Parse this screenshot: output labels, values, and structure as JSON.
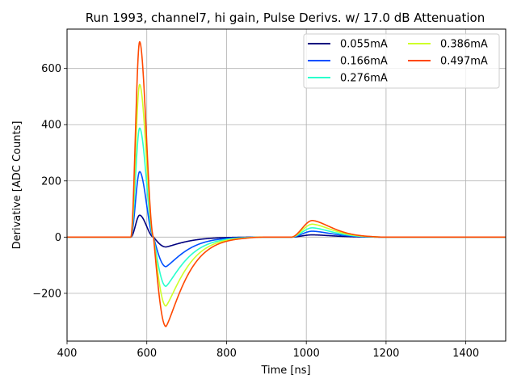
{
  "chart_data": {
    "type": "line",
    "title": "Run 1993, channel7, hi gain, Pulse Derivs. w/ 17.0 dB Attenuation",
    "xlabel": "Time [ns]",
    "ylabel": "Derivative [ADC Counts]",
    "xlim": [
      400,
      1500
    ],
    "ylim": [
      -370,
      740
    ],
    "xticks": [
      400,
      600,
      800,
      1000,
      1200,
      1400
    ],
    "yticks": [
      -200,
      0,
      200,
      400,
      600
    ],
    "ytick_labels": [
      "−200",
      "0",
      "200",
      "400",
      "600"
    ],
    "grid": true,
    "legend_position": "top-right",
    "legend_columns": 2,
    "pulse_shape": {
      "rise_start": 560,
      "peak_time": 582,
      "zero_cross_1": 617,
      "trough_time": 648,
      "recover_end": 900,
      "bump_start": 962,
      "bump_peak": 1015,
      "bump_end": 1200
    },
    "series": [
      {
        "name": "0.055mA",
        "color": "#00007f",
        "peak": 78,
        "trough": -35,
        "bump": 8
      },
      {
        "name": "0.166mA",
        "color": "#0050ff",
        "peak": 233,
        "trough": -105,
        "bump": 21
      },
      {
        "name": "0.276mA",
        "color": "#29ffcd",
        "peak": 388,
        "trough": -175,
        "bump": 33
      },
      {
        "name": "0.386mA",
        "color": "#ceff29",
        "peak": 543,
        "trough": -245,
        "bump": 46
      },
      {
        "name": "0.497mA",
        "color": "#ff4800",
        "peak": 695,
        "trough": -318,
        "bump": 59
      }
    ]
  }
}
